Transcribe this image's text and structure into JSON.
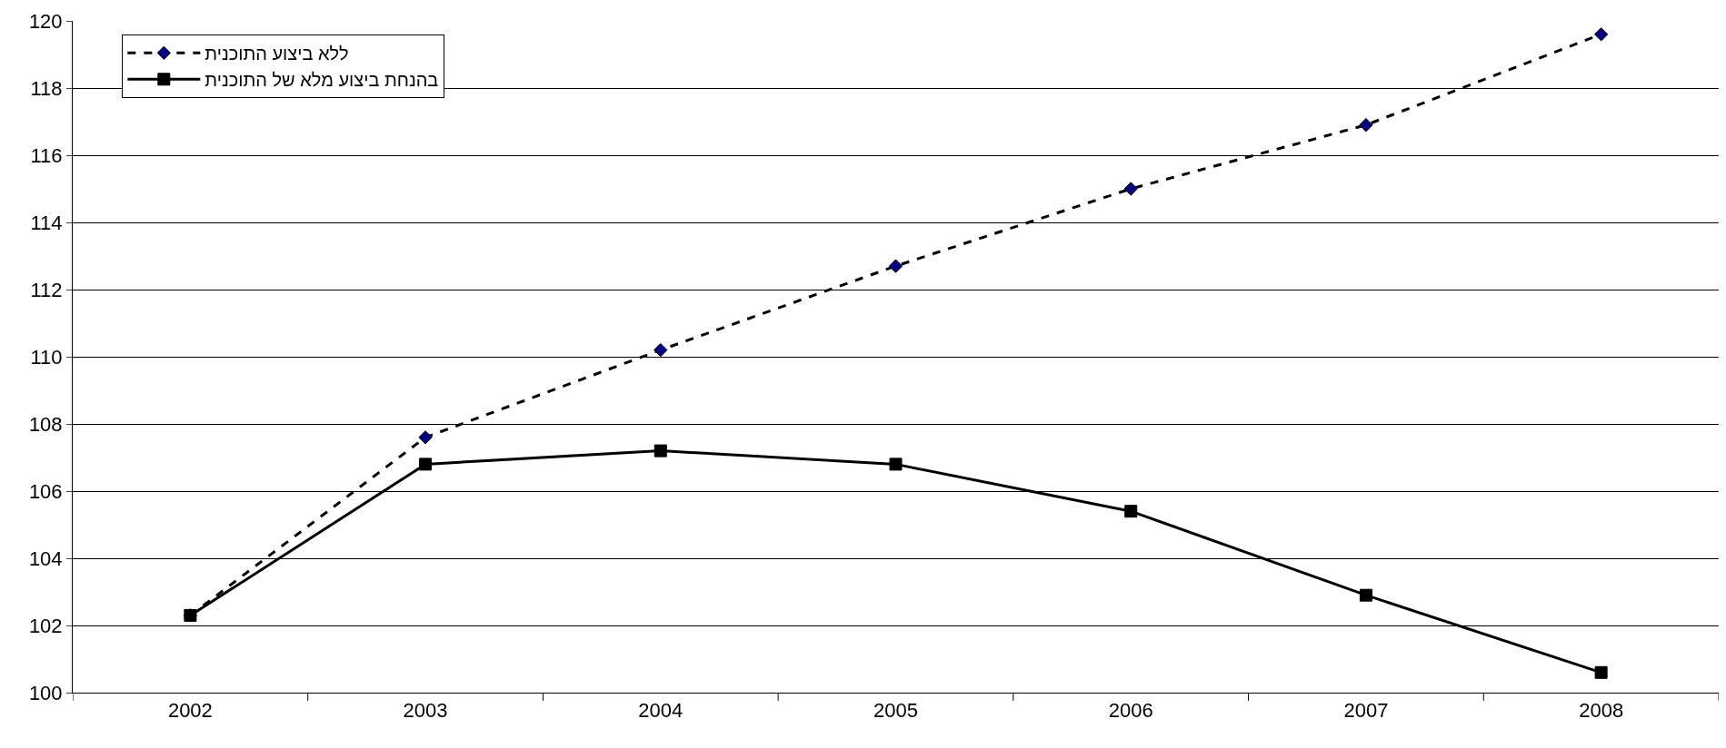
{
  "chart_data": {
    "type": "line",
    "categories": [
      "2002",
      "2003",
      "2004",
      "2005",
      "2006",
      "2007",
      "2008"
    ],
    "series": [
      {
        "name": "ללא ביצוע התוכנית",
        "color": "#000080",
        "values": [
          102.3,
          107.6,
          110.2,
          112.7,
          115.0,
          116.9,
          119.6
        ],
        "marker": "diamond",
        "line_style": "dashed"
      },
      {
        "name": "בהנחת ביצוע מלא של התוכנית",
        "color": "#000000",
        "values": [
          102.3,
          106.8,
          107.2,
          106.8,
          105.4,
          102.9,
          100.6
        ],
        "marker": "square",
        "line_style": "solid"
      }
    ],
    "ylim": [
      100,
      120
    ],
    "yticks": [
      100,
      102,
      104,
      106,
      108,
      110,
      112,
      114,
      116,
      118,
      120
    ],
    "grid": "y",
    "legend": "top left"
  }
}
